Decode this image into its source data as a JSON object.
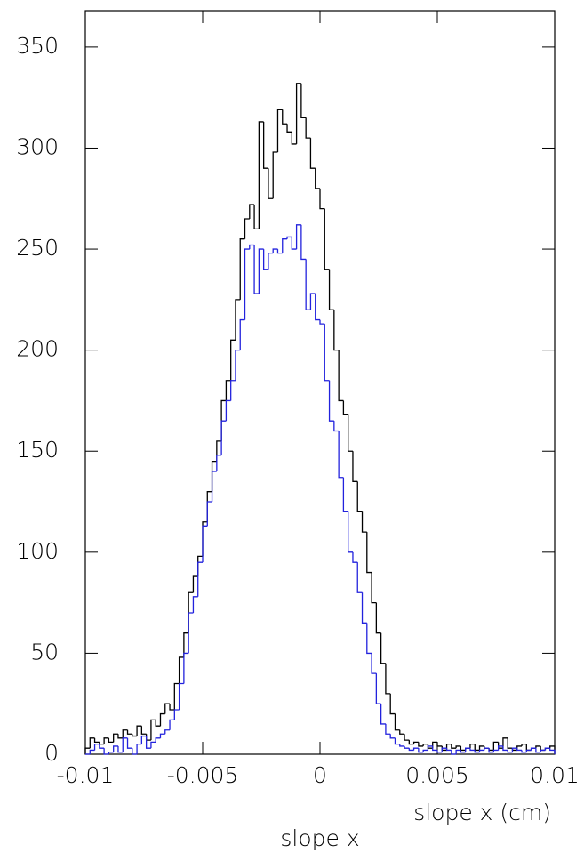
{
  "chart_data": {
    "type": "histogram",
    "title": "slope x",
    "xlabel": "slope x (cm)",
    "bins": [
      -0.01,
      -0.0098,
      -0.0096,
      -0.0094,
      -0.0092,
      -0.009,
      -0.0088,
      -0.0086,
      -0.0084,
      -0.0082,
      -0.008,
      -0.0078,
      -0.0076,
      -0.0074,
      -0.0072,
      -0.007,
      -0.0068,
      -0.0066,
      -0.0064,
      -0.0062,
      -0.006,
      -0.0058,
      -0.0056,
      -0.0054,
      -0.0052,
      -0.005,
      -0.0048,
      -0.0046,
      -0.0044,
      -0.0042,
      -0.004,
      -0.0038,
      -0.0036,
      -0.0034,
      -0.0032,
      -0.003,
      -0.0028,
      -0.0026,
      -0.0024,
      -0.0022,
      -0.002,
      -0.0018,
      -0.0016,
      -0.0014,
      -0.0012,
      -0.001,
      -0.0008,
      -0.0006,
      -0.0004,
      -0.0002,
      0,
      0.0002,
      0.0004,
      0.0006,
      0.0008,
      0.001,
      0.0012,
      0.0014,
      0.0016,
      0.0018,
      0.002,
      0.0022,
      0.0024,
      0.0026,
      0.0028,
      0.003,
      0.0032,
      0.0034,
      0.0036,
      0.0038,
      0.004,
      0.0042,
      0.0044,
      0.0046,
      0.0048,
      0.005,
      0.0052,
      0.0054,
      0.0056,
      0.0058,
      0.006,
      0.0062,
      0.0064,
      0.0066,
      0.0068,
      0.007,
      0.0072,
      0.0074,
      0.0076,
      0.0078,
      0.008,
      0.0082,
      0.0084,
      0.0086,
      0.0088,
      0.009,
      0.0092,
      0.0094,
      0.0096,
      0.0098,
      0.01
    ],
    "series": [
      {
        "color": "#000000",
        "values": [
          3,
          8,
          6,
          5,
          8,
          6,
          10,
          8,
          12,
          10,
          9,
          14,
          10,
          7,
          17,
          14,
          20,
          25,
          22,
          35,
          48,
          60,
          80,
          88,
          98,
          115,
          130,
          145,
          155,
          175,
          185,
          205,
          225,
          255,
          265,
          272,
          260,
          313,
          290,
          275,
          298,
          319,
          312,
          308,
          302,
          332,
          315,
          305,
          290,
          280,
          270,
          240,
          220,
          200,
          175,
          168,
          150,
          135,
          120,
          110,
          90,
          75,
          60,
          45,
          30,
          20,
          12,
          10,
          7,
          5,
          6,
          4,
          5,
          3,
          6,
          4,
          2,
          5,
          3,
          4,
          2,
          3,
          5,
          2,
          4,
          3,
          2,
          6,
          3,
          8,
          3,
          2,
          4,
          5,
          2,
          3,
          4,
          2,
          3,
          4
        ]
      },
      {
        "color": "#2222dd",
        "values": [
          0,
          2,
          5,
          3,
          0,
          1,
          4,
          1,
          8,
          3,
          0,
          5,
          9,
          3,
          6,
          8,
          10,
          12,
          17,
          22,
          35,
          50,
          70,
          78,
          95,
          113,
          125,
          140,
          148,
          165,
          175,
          185,
          200,
          215,
          250,
          252,
          228,
          250,
          240,
          248,
          250,
          248,
          255,
          256,
          250,
          262,
          245,
          220,
          228,
          215,
          213,
          185,
          165,
          160,
          137,
          120,
          100,
          95,
          80,
          65,
          50,
          40,
          25,
          15,
          10,
          8,
          5,
          4,
          3,
          2,
          3,
          1,
          2,
          4,
          2,
          1,
          3,
          2,
          0,
          2,
          1,
          3,
          2,
          1,
          2,
          3,
          1,
          2,
          4,
          2,
          1,
          3,
          2,
          1,
          2,
          3,
          1,
          2,
          3,
          2
        ]
      }
    ],
    "xlim": [
      -0.01,
      0.01
    ],
    "xticks": [
      -0.01,
      -0.005,
      0,
      0.005,
      0.01
    ],
    "ylim": [
      0,
      368
    ],
    "yticks": [
      0,
      50,
      100,
      150,
      200,
      250,
      300,
      350
    ]
  }
}
